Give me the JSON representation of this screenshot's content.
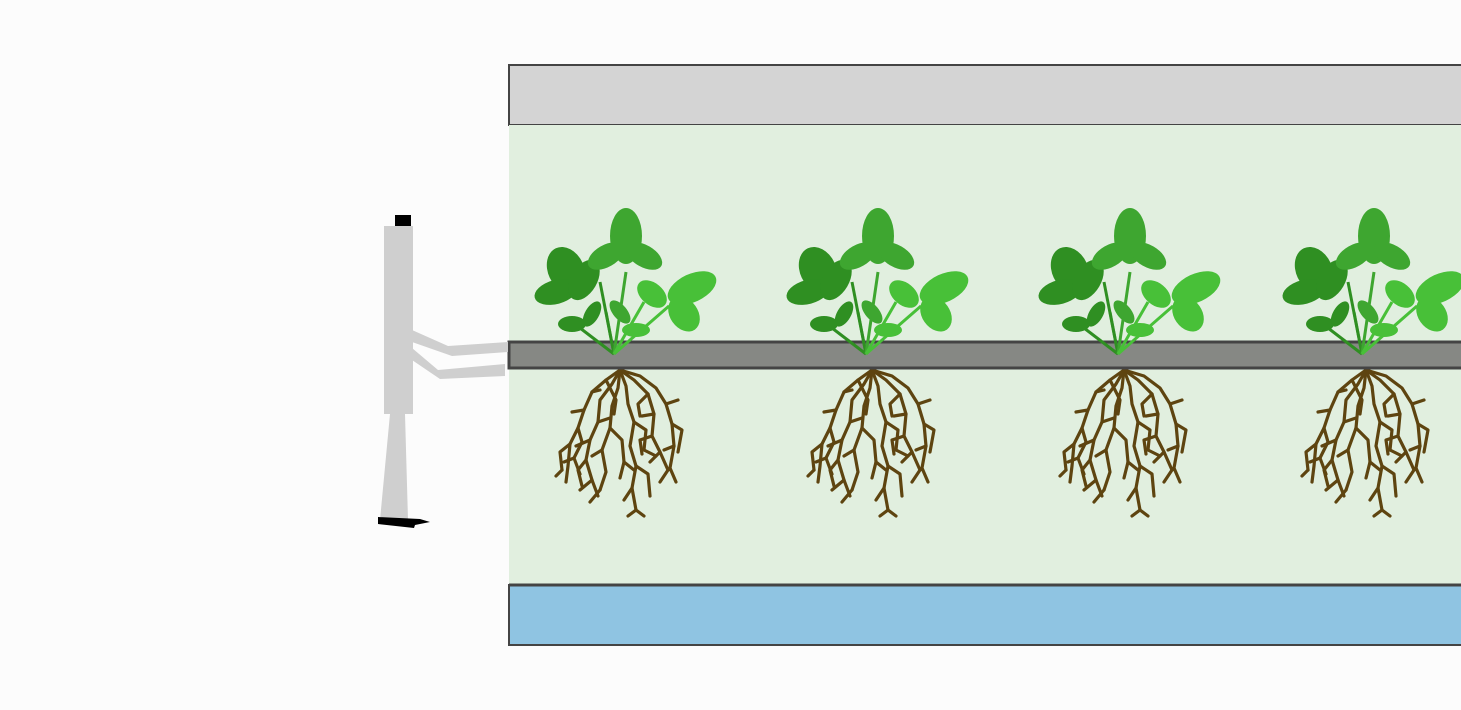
{
  "diagram": {
    "description_visible_text": "",
    "colors": {
      "background": "#fcfcfc",
      "lid": "#d4d4d4",
      "chamber": "#e1efdf",
      "plant_bar": "#868884",
      "water": "#8fc4e2",
      "outline": "#444444",
      "leaf_dark": "#2f8f22",
      "leaf_mid": "#3ea630",
      "leaf_light": "#48c038",
      "root": "#5e4410",
      "figure": "#cfcfcf",
      "figure_dark": "#000000"
    },
    "components": [
      {
        "name": "lid-panel",
        "icon": "panel"
      },
      {
        "name": "growth-chamber",
        "icon": "chamber"
      },
      {
        "name": "plant-bar",
        "icon": "bar"
      },
      {
        "name": "water-reservoir",
        "icon": "water"
      },
      {
        "name": "person-figure",
        "icon": "person-icon"
      }
    ],
    "plants": [
      {
        "name": "plant-1"
      },
      {
        "name": "plant-2"
      },
      {
        "name": "plant-3"
      },
      {
        "name": "plant-4"
      }
    ]
  }
}
